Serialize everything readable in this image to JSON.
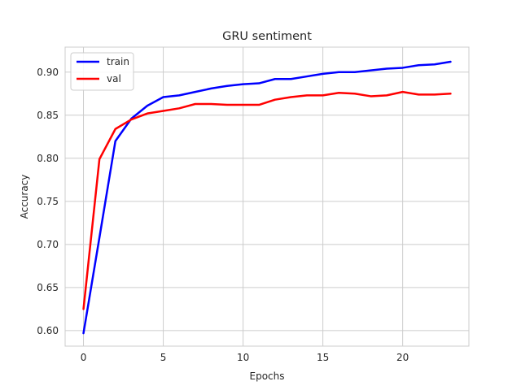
{
  "chart_data": {
    "type": "line",
    "title": "GRU sentiment",
    "xlabel": "Epochs",
    "ylabel": "Accuracy",
    "xlim": [
      -1.15,
      24.15
    ],
    "ylim": [
      0.582,
      0.929
    ],
    "xticks": [
      0,
      5,
      10,
      15,
      20
    ],
    "xtick_labels": [
      "0",
      "5",
      "10",
      "15",
      "20"
    ],
    "yticks": [
      0.6,
      0.65,
      0.7,
      0.75,
      0.8,
      0.85,
      0.9
    ],
    "ytick_labels": [
      "0.60",
      "0.65",
      "0.70",
      "0.75",
      "0.80",
      "0.85",
      "0.90"
    ],
    "grid": true,
    "legend_position": "top-left",
    "x": [
      0,
      1,
      2,
      3,
      4,
      5,
      6,
      7,
      8,
      9,
      10,
      11,
      12,
      13,
      14,
      15,
      16,
      17,
      18,
      19,
      20,
      21,
      22,
      23
    ],
    "series": [
      {
        "name": "train",
        "color": "#0000ff",
        "values": [
          0.597,
          0.708,
          0.82,
          0.846,
          0.861,
          0.871,
          0.873,
          0.877,
          0.881,
          0.884,
          0.886,
          0.887,
          0.892,
          0.892,
          0.895,
          0.898,
          0.9,
          0.9,
          0.902,
          0.904,
          0.905,
          0.908,
          0.909,
          0.912
        ]
      },
      {
        "name": "val",
        "color": "#ff0000",
        "values": [
          0.625,
          0.799,
          0.834,
          0.845,
          0.852,
          0.855,
          0.858,
          0.863,
          0.863,
          0.862,
          0.862,
          0.862,
          0.868,
          0.871,
          0.873,
          0.873,
          0.876,
          0.875,
          0.872,
          0.873,
          0.877,
          0.874,
          0.874,
          0.875
        ]
      }
    ]
  }
}
